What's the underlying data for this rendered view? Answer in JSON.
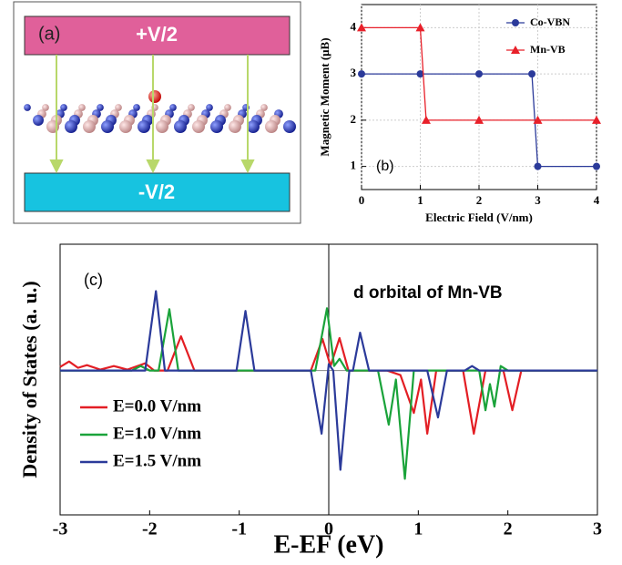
{
  "panel_a": {
    "label": "(a)",
    "top_plate": "+V/2",
    "bottom_plate": "-V/2"
  },
  "chart_data": [
    {
      "type": "line",
      "label": "(b)",
      "xlabel": "Electric Field (V/nm)",
      "ylabel": "Magnetic Moment (μB)",
      "xlim": [
        0,
        4
      ],
      "ylim": [
        0.5,
        4.5
      ],
      "xticks": [
        0,
        1,
        2,
        3,
        4
      ],
      "yticks": [
        1,
        2,
        3,
        4
      ],
      "legend": "upper right",
      "grid": true,
      "series": [
        {
          "name": "Co-VBN",
          "color": "#2b3a9a",
          "marker": "circle",
          "x": [
            0,
            1,
            2,
            2.9,
            3,
            4
          ],
          "values": [
            3,
            3,
            3,
            3,
            1,
            1
          ]
        },
        {
          "name": "Mn-VB",
          "color": "#e8202a",
          "marker": "triangle",
          "x": [
            0,
            1,
            1.1,
            2,
            3,
            4
          ],
          "values": [
            4,
            4,
            2,
            2,
            2,
            2
          ]
        }
      ]
    },
    {
      "type": "line",
      "label": "(c)",
      "annotation": "d orbital of Mn-VB",
      "xlabel": "E-EF (eV)",
      "ylabel": "Density of States (a. u.)",
      "xlim": [
        -3,
        3
      ],
      "ylim": [
        -16,
        14
      ],
      "xticks": [
        -3,
        -2,
        -1,
        0,
        1,
        2,
        3
      ],
      "legend": "lower left",
      "grid": false,
      "series": [
        {
          "name": "E=0.0 V/nm",
          "color": "#e31e24",
          "x": [
            -3,
            -2.9,
            -2.8,
            -2.7,
            -2.55,
            -2.4,
            -2.25,
            -2.05,
            -1.95,
            -1.8,
            -1.65,
            -1.5,
            -1.4,
            -0.2,
            -0.07,
            0.02,
            0.12,
            0.22,
            0.3,
            0.65,
            0.8,
            0.95,
            1.03,
            1.1,
            1.2,
            1.5,
            1.62,
            1.75,
            1.95,
            2.05,
            2.15,
            2.3,
            3
          ],
          "values": [
            0.4,
            1,
            0.3,
            0.6,
            0.1,
            0.5,
            0.1,
            0.8,
            0,
            0,
            3.8,
            0,
            0,
            0,
            3.5,
            0.5,
            3.6,
            0,
            0,
            0,
            -0.5,
            -4.7,
            -1,
            -7,
            0,
            0,
            -7,
            0,
            0,
            -4.4,
            0,
            0,
            0
          ]
        },
        {
          "name": "E=1.0 V/nm",
          "color": "#1aa33a",
          "x": [
            -3,
            -2.2,
            -2.1,
            -2.0,
            -1.9,
            -1.78,
            -1.68,
            -0.15,
            -0.02,
            0.06,
            0.12,
            0.2,
            0.55,
            0.67,
            0.75,
            0.85,
            0.95,
            1.5,
            1.68,
            1.75,
            1.8,
            1.85,
            1.92,
            2.0,
            3
          ],
          "values": [
            0,
            0,
            0.5,
            0,
            0,
            6.8,
            0,
            0,
            6.9,
            0.5,
            1.3,
            0,
            0,
            -6,
            -1,
            -12,
            0,
            0,
            0,
            -4.4,
            -1.5,
            -4,
            0.5,
            0,
            0
          ]
        },
        {
          "name": "E=1.5 V/nm",
          "color": "#2b3a9a",
          "x": [
            -3,
            -2.05,
            -1.93,
            -1.83,
            -1.03,
            -0.93,
            -0.83,
            -0.2,
            -0.08,
            0.0,
            0.05,
            0.13,
            0.23,
            0.27,
            0.35,
            0.45,
            1.1,
            1.22,
            1.32,
            1.52,
            1.6,
            1.68,
            3
          ],
          "values": [
            0,
            0,
            8.8,
            0,
            0,
            6.6,
            0,
            0,
            -7,
            0.7,
            0,
            -11,
            0,
            0,
            4.2,
            0,
            0,
            -5.2,
            0,
            0,
            0.5,
            0,
            0
          ]
        }
      ]
    }
  ]
}
